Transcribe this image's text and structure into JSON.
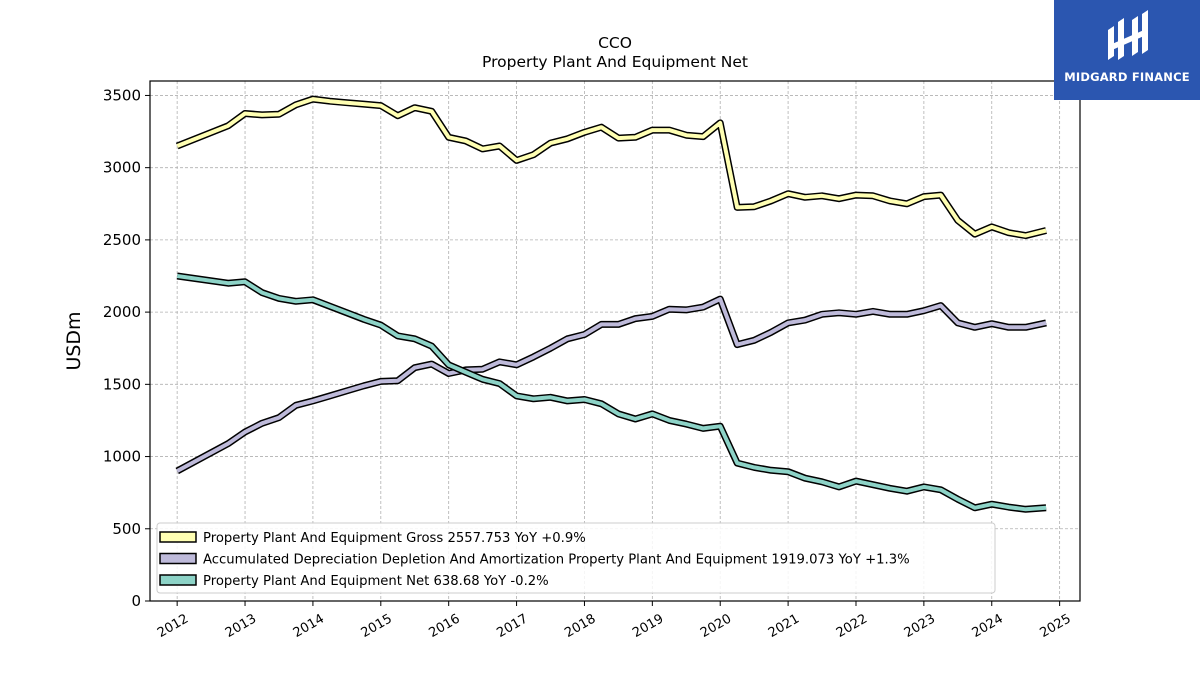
{
  "chart_data": {
    "type": "line",
    "title": "CCO",
    "subtitle": "Property Plant And Equipment Net",
    "ylabel": "USDm",
    "xlabel": "",
    "ylim": [
      0,
      3600
    ],
    "xlim": [
      2011.6,
      2025.3
    ],
    "yticks": [
      0,
      500,
      1000,
      1500,
      2000,
      2500,
      3000,
      3500
    ],
    "xticks": [
      "2012",
      "2013",
      "2014",
      "2015",
      "2016",
      "2017",
      "2018",
      "2019",
      "2020",
      "2021",
      "2022",
      "2023",
      "2024",
      "2025"
    ],
    "grid": true,
    "legend_position": "lower-left",
    "series": [
      {
        "name": "Property Plant And Equipment Gross",
        "legend": "Property Plant And Equipment Gross  2557.753 YoY +0.9%",
        "color": "#ffffb3",
        "x": [
          2012.0,
          2012.75,
          2013.0,
          2013.25,
          2013.5,
          2013.75,
          2014.0,
          2014.25,
          2014.5,
          2014.75,
          2015.0,
          2015.25,
          2015.5,
          2015.75,
          2016.0,
          2016.25,
          2016.5,
          2016.75,
          2017.0,
          2017.25,
          2017.5,
          2017.75,
          2018.0,
          2018.25,
          2018.5,
          2018.75,
          2019.0,
          2019.25,
          2019.5,
          2019.75,
          2020.0,
          2020.25,
          2020.5,
          2020.75,
          2021.0,
          2021.25,
          2021.5,
          2021.75,
          2022.0,
          2022.25,
          2022.5,
          2022.75,
          2023.0,
          2023.25,
          2023.5,
          2023.75,
          2024.0,
          2024.25,
          2024.5,
          2024.8
        ],
        "values": [
          3150,
          3290,
          3375,
          3365,
          3370,
          3435,
          3475,
          3460,
          3450,
          3440,
          3430,
          3360,
          3415,
          3390,
          3210,
          3185,
          3130,
          3150,
          3050,
          3090,
          3170,
          3200,
          3245,
          3280,
          3205,
          3210,
          3260,
          3260,
          3225,
          3215,
          3310,
          2725,
          2730,
          2770,
          2820,
          2795,
          2805,
          2785,
          2810,
          2805,
          2770,
          2750,
          2800,
          2810,
          2635,
          2540,
          2590,
          2550,
          2530,
          2565
        ]
      },
      {
        "name": "Accumulated Depreciation Depletion And Amortization Property Plant And Equipment",
        "legend": "Accumulated Depreciation Depletion And Amortization Property Plant And Equipment  1919.073 YoY +1.3%",
        "color": "#bebada",
        "x": [
          2012.0,
          2012.75,
          2013.0,
          2013.25,
          2013.5,
          2013.75,
          2014.0,
          2014.25,
          2014.5,
          2014.75,
          2015.0,
          2015.25,
          2015.5,
          2015.75,
          2016.0,
          2016.25,
          2016.5,
          2016.75,
          2017.0,
          2017.25,
          2017.5,
          2017.75,
          2018.0,
          2018.25,
          2018.5,
          2018.75,
          2019.0,
          2019.25,
          2019.5,
          2019.75,
          2020.0,
          2020.25,
          2020.5,
          2020.75,
          2021.0,
          2021.25,
          2021.5,
          2021.75,
          2022.0,
          2022.25,
          2022.5,
          2022.75,
          2023.0,
          2023.25,
          2023.5,
          2023.75,
          2024.0,
          2024.25,
          2024.5,
          2024.8
        ],
        "values": [
          900,
          1090,
          1170,
          1230,
          1270,
          1355,
          1385,
          1420,
          1455,
          1490,
          1520,
          1525,
          1615,
          1640,
          1575,
          1600,
          1605,
          1655,
          1635,
          1690,
          1750,
          1815,
          1845,
          1915,
          1915,
          1955,
          1970,
          2020,
          2015,
          2035,
          2090,
          1775,
          1805,
          1860,
          1925,
          1945,
          1985,
          1995,
          1985,
          2005,
          1985,
          1985,
          2010,
          2045,
          1925,
          1895,
          1920,
          1895,
          1895,
          1925
        ]
      },
      {
        "name": "Property Plant And Equipment Net",
        "legend": "Property Plant And Equipment Net  638.68 YoY -0.2%",
        "color": "#8dd3c7",
        "x": [
          2012.0,
          2012.75,
          2013.0,
          2013.25,
          2013.5,
          2013.75,
          2014.0,
          2014.25,
          2014.5,
          2014.75,
          2015.0,
          2015.25,
          2015.5,
          2015.75,
          2016.0,
          2016.25,
          2016.5,
          2016.75,
          2017.0,
          2017.25,
          2017.5,
          2017.75,
          2018.0,
          2018.25,
          2018.5,
          2018.75,
          2019.0,
          2019.25,
          2019.5,
          2019.75,
          2020.0,
          2020.25,
          2020.5,
          2020.75,
          2021.0,
          2021.25,
          2021.5,
          2021.75,
          2022.0,
          2022.25,
          2022.5,
          2022.75,
          2023.0,
          2023.25,
          2023.5,
          2023.75,
          2024.0,
          2024.25,
          2024.5,
          2024.8
        ],
        "values": [
          2250,
          2200,
          2210,
          2135,
          2095,
          2075,
          2085,
          2040,
          1995,
          1950,
          1910,
          1835,
          1815,
          1765,
          1635,
          1585,
          1535,
          1505,
          1420,
          1400,
          1410,
          1385,
          1395,
          1365,
          1295,
          1260,
          1295,
          1250,
          1225,
          1195,
          1210,
          955,
          925,
          905,
          895,
          850,
          825,
          790,
          830,
          805,
          780,
          760,
          790,
          770,
          705,
          645,
          670,
          650,
          635,
          645
        ]
      }
    ]
  },
  "logo": {
    "text": "MIDGARD FINANCE",
    "background": "#2b56b0"
  }
}
